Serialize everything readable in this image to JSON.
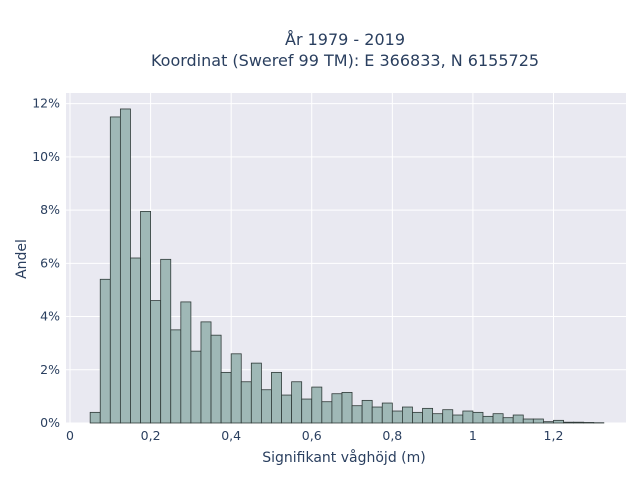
{
  "chart_data": {
    "type": "bar",
    "title": "År 1979 - 2019",
    "subtitle": "Koordinat (Sweref 99 TM): E 366833, N 6155725",
    "xlabel": "Signifikant våghöjd (m)",
    "ylabel": "Andel",
    "xlim": [
      -0.01,
      1.38
    ],
    "ylim": [
      0,
      12.4
    ],
    "grid": true,
    "x_ticks": [
      {
        "value": 0,
        "label": "0"
      },
      {
        "value": 0.2,
        "label": "0,2"
      },
      {
        "value": 0.4,
        "label": "0,4"
      },
      {
        "value": 0.6,
        "label": "0,6"
      },
      {
        "value": 0.8,
        "label": "0,8"
      },
      {
        "value": 1.0,
        "label": "1"
      },
      {
        "value": 1.2,
        "label": "1,2"
      }
    ],
    "y_ticks": [
      {
        "value": 0,
        "label": "0%"
      },
      {
        "value": 2,
        "label": "2%"
      },
      {
        "value": 4,
        "label": "4%"
      },
      {
        "value": 6,
        "label": "6%"
      },
      {
        "value": 8,
        "label": "8%"
      },
      {
        "value": 10,
        "label": "10%"
      },
      {
        "value": 12,
        "label": "12%"
      }
    ],
    "bin_width": 0.025,
    "bins_start": [
      0.05,
      0.075,
      0.1,
      0.125,
      0.15,
      0.175,
      0.2,
      0.225,
      0.25,
      0.275,
      0.3,
      0.325,
      0.35,
      0.375,
      0.4,
      0.425,
      0.45,
      0.475,
      0.5,
      0.525,
      0.55,
      0.575,
      0.6,
      0.625,
      0.65,
      0.675,
      0.7,
      0.725,
      0.75,
      0.775,
      0.8,
      0.825,
      0.85,
      0.875,
      0.9,
      0.925,
      0.95,
      0.975,
      1.0,
      1.025,
      1.05,
      1.075,
      1.1,
      1.125,
      1.15,
      1.175,
      1.2,
      1.225,
      1.25,
      1.275,
      1.3
    ],
    "values": [
      0.4,
      5.4,
      11.5,
      11.8,
      6.2,
      7.95,
      4.6,
      6.15,
      3.5,
      4.55,
      2.7,
      3.8,
      3.3,
      1.9,
      2.6,
      1.55,
      2.25,
      1.25,
      1.9,
      1.05,
      1.55,
      0.9,
      1.35,
      0.8,
      1.1,
      1.15,
      0.65,
      0.85,
      0.6,
      0.75,
      0.45,
      0.6,
      0.4,
      0.55,
      0.35,
      0.5,
      0.3,
      0.45,
      0.4,
      0.25,
      0.35,
      0.2,
      0.3,
      0.15,
      0.15,
      0.05,
      0.1,
      0.03,
      0.03,
      0.02,
      0.01
    ],
    "colors": {
      "bar_fill": "#9fb8b6",
      "bar_stroke": "#2f3a38",
      "plot_bg": "#e9e9f1",
      "grid": "#ffffff",
      "text": "#2a3f5f"
    }
  }
}
